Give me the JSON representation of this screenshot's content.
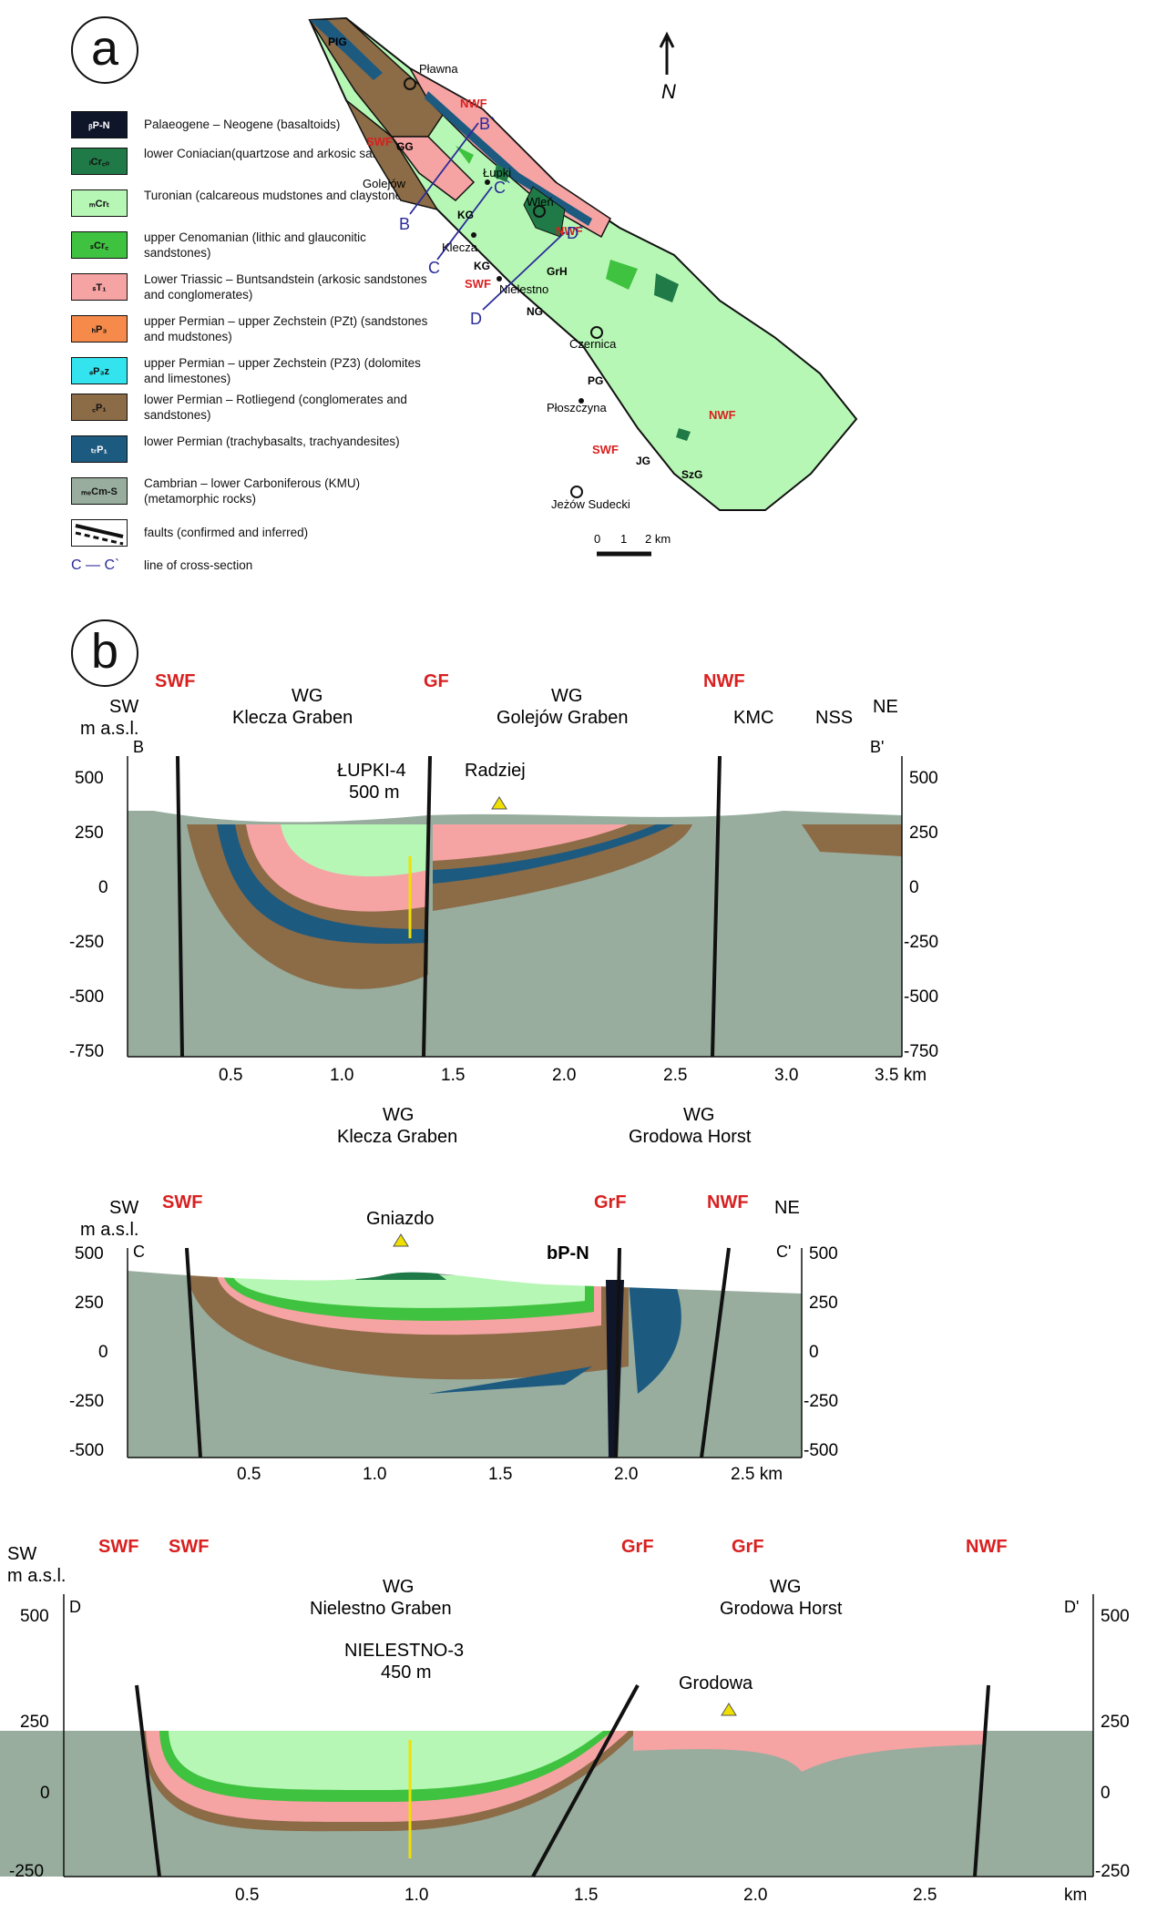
{
  "panel_a": {
    "letter": "a",
    "legend": [
      {
        "code": "bP-N",
        "text": "Palaeogene – Neogene (basaltoids)",
        "color": "#10162a",
        "text_color": "#ffffff"
      },
      {
        "code": "lCrco",
        "text": "lower Coniacian(quartzose and arkosic sandstones)",
        "color": "#1f7a47",
        "text_color": "#000000"
      },
      {
        "code": "mCrt",
        "text": "Turonian (calcareous mudstones and claystones)",
        "color": "#b7f7b5",
        "text_color": "#000000"
      },
      {
        "code": "sCrc",
        "text": "upper Cenomanian (lithic and glauconitic sandstones)",
        "color": "#3fc23f",
        "text_color": "#000000"
      },
      {
        "code": "sT1",
        "text": "Lower Triassic – Buntsandstein (arkosic sandstones and conglomerates)",
        "color": "#f5a3a3",
        "text_color": "#000000"
      },
      {
        "code": "hP3",
        "text": "upper Permian – upper Zechstein (PZt) (sandstones and mudstones)",
        "color": "#f58a4a",
        "text_color": "#000000"
      },
      {
        "code": "dP3z",
        "text": "upper Permian – upper Zechstein (PZ3) (dolomites and limestones)",
        "color": "#33e4ee",
        "text_color": "#000000"
      },
      {
        "code": "cP1",
        "text": "lower Permian – Rotliegend (conglomerates and sandstones)",
        "color": "#8c6b47",
        "text_color": "#000000"
      },
      {
        "code": "trP1",
        "text": "lower Permian (trachybasalts, trachyandesites)",
        "color": "#1d5a80",
        "text_color": "#ffffff"
      },
      {
        "code": "meCm-S",
        "text": "Cambrian – lower Carboniferous (KMU) (metamorphic rocks)",
        "color": "#98ad9e",
        "text_color": "#000000"
      },
      {
        "code": "",
        "text": "faults (confirmed  and inferred)",
        "color": "#ffffff",
        "text_color": "#000000"
      },
      {
        "code": "C — C`",
        "text": "line of cross-section",
        "color": "",
        "text_color": "#2a2a9a"
      }
    ],
    "map_labels": {
      "places": [
        "Pławna",
        "Golejów",
        "Łupki",
        "Wleń",
        "Klecza",
        "Nielestno",
        "Czernica",
        "Płoszczyna",
        "Jeżów Sudecki"
      ],
      "units": [
        "PIG",
        "GG",
        "KG",
        "KG",
        "GrH",
        "NG",
        "PG",
        "JG",
        "SzG"
      ],
      "faults": [
        "NWF",
        "SWF",
        "NWF",
        "SWF",
        "NWF",
        "SWF"
      ],
      "section_ends": [
        "B`",
        "B",
        "C`",
        "C",
        "D`",
        "D"
      ]
    },
    "scale": {
      "ticks": [
        "0",
        "1",
        "2 km"
      ]
    },
    "north": "N"
  },
  "panel_b": {
    "letter": "b",
    "section_b": {
      "left_end": "B",
      "right_end": "B'",
      "left_dir": "SW",
      "right_dir": "NE",
      "axis_unit": "m a.s.l.",
      "y_ticks": [
        "500",
        "250",
        "0",
        "-250",
        "-500",
        "-750"
      ],
      "x_ticks": [
        "0.5",
        "1.0",
        "1.5",
        "2.0",
        "2.5",
        "3.0",
        "3.5 km"
      ],
      "faults": [
        "SWF",
        "GF",
        "NWF"
      ],
      "headers": [
        {
          "line1": "WG",
          "line2": "Klecza Graben"
        },
        {
          "line1": "WG",
          "line2": "Golejów Graben"
        }
      ],
      "extra": [
        "KMC",
        "NSS"
      ],
      "well": {
        "name": "ŁUPKI-4",
        "depth": "500 m"
      },
      "peak": "Radziej"
    },
    "section_c": {
      "left_end": "C",
      "right_end": "C'",
      "left_dir": "SW",
      "right_dir": "NE",
      "axis_unit": "m a.s.l.",
      "y_ticks": [
        "500",
        "250",
        "0",
        "-250",
        "-500"
      ],
      "x_ticks": [
        "0.5",
        "1.0",
        "1.5",
        "2.0",
        "2.5 km"
      ],
      "faults": [
        "SWF",
        "GrF",
        "NWF"
      ],
      "headers": [
        {
          "line1": "WG",
          "line2": "Klecza Graben"
        },
        {
          "line1": "WG",
          "line2": "Grodowa Horst"
        }
      ],
      "unit_label": "bP-N",
      "peak": "Gniazdo"
    },
    "section_d": {
      "left_end": "D",
      "right_end": "D'",
      "left_dir": "SW",
      "axis_unit": "m a.s.l.",
      "y_ticks": [
        "500",
        "250",
        "0",
        "-250"
      ],
      "x_ticks": [
        "0.5",
        "1.0",
        "1.5",
        "2.0",
        "2.5",
        "km"
      ],
      "faults": [
        "SWF",
        "SWF",
        "GrF",
        "GrF",
        "NWF"
      ],
      "headers": [
        {
          "line1": "WG",
          "line2": "Nielestno Graben"
        },
        {
          "line1": "WG",
          "line2": "Grodowa Horst"
        }
      ],
      "well": {
        "name": "NIELESTNO-3",
        "depth": "450 m"
      },
      "peak": "Grodowa"
    }
  }
}
